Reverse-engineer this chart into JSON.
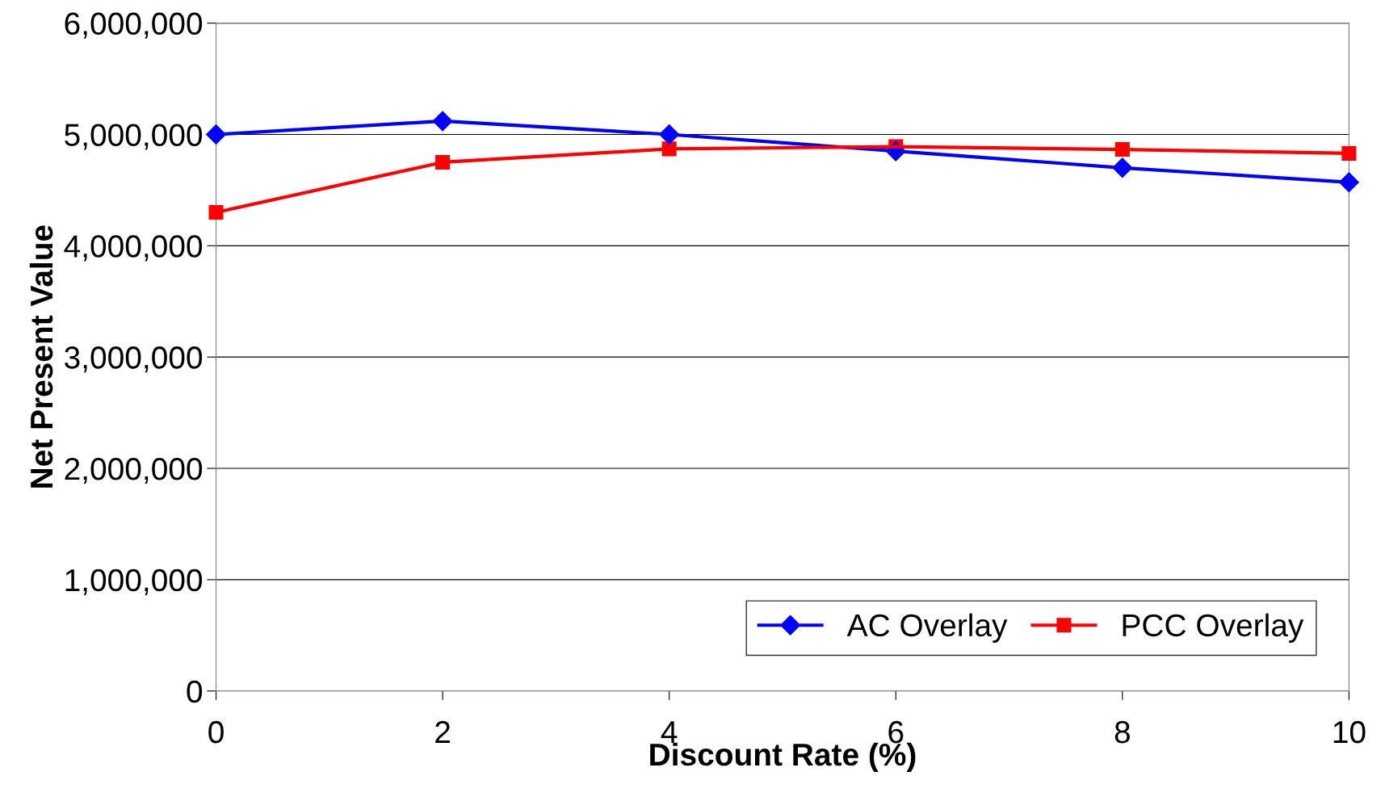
{
  "chart_data": {
    "type": "line",
    "xlabel": "Discount Rate (%)",
    "ylabel": "Net Present Value",
    "x": [
      0,
      2,
      4,
      6,
      8,
      10
    ],
    "series": [
      {
        "name": "AC Overlay",
        "color": "#0000ff",
        "marker": "diamond",
        "values": [
          5000000,
          5120000,
          5000000,
          4850000,
          4700000,
          4570000
        ]
      },
      {
        "name": "PCC Overlay",
        "color": "#ff0000",
        "marker": "square",
        "values": [
          4300000,
          4750000,
          4870000,
          4890000,
          4865000,
          4830000
        ]
      }
    ],
    "xlim": [
      0,
      10
    ],
    "xticks": [
      0,
      2,
      4,
      6,
      8,
      10
    ],
    "ylim": [
      0,
      6000000
    ],
    "yticks": [
      {
        "value": 0,
        "label": "0"
      },
      {
        "value": 1000000,
        "label": "1,000,000"
      },
      {
        "value": 2000000,
        "label": "2,000,000"
      },
      {
        "value": 3000000,
        "label": "3,000,000"
      },
      {
        "value": 4000000,
        "label": "4,000,000"
      },
      {
        "value": 5000000,
        "label": "5,000,000"
      },
      {
        "value": 6000000,
        "label": "6,000,000"
      }
    ],
    "grid": "y",
    "legend": "bottom right",
    "line_style": "solid"
  }
}
